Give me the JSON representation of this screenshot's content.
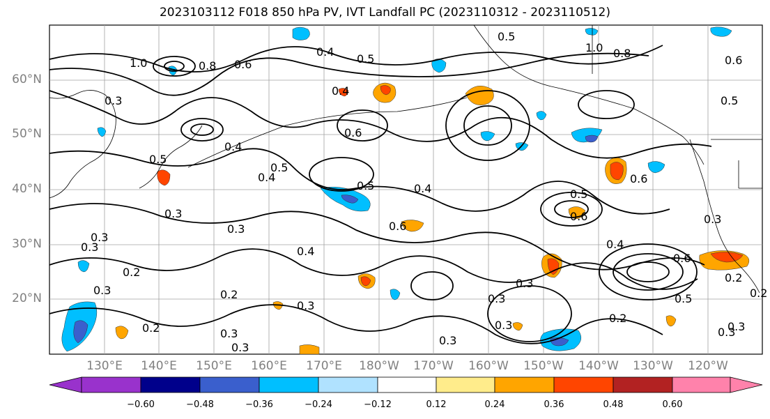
{
  "title": "2023103112 F018 850 hPa PV, IVT Landfall PC (2023110312 - 2023110512)",
  "lat_labels": [
    "60°N",
    "50°N",
    "40°N",
    "30°N",
    "20°N"
  ],
  "lon_labels": [
    "130°E",
    "140°E",
    "150°E",
    "160°E",
    "170°E",
    "180°W",
    "170°W",
    "160°W",
    "150°W",
    "140°W",
    "130°W",
    "120°W"
  ],
  "colorbar": {
    "colors": [
      "#9932CC",
      "#00008B",
      "#3A5FCD",
      "#00BFFF",
      "#B0E2FF",
      "#FFFFFF",
      "#FFEC8B",
      "#FFA500",
      "#FF4500",
      "#B22222",
      "#FF82AB"
    ],
    "ticks": [
      "−0.60",
      "−0.48",
      "−0.36",
      "−0.24",
      "−0.12",
      "0.12",
      "0.24",
      "0.36",
      "0.48",
      "0.60"
    ]
  },
  "contour_labels": [
    "1.0",
    "0.8",
    "0.6",
    "0.4",
    "0.3",
    "0.5",
    "0.4",
    "0.5",
    "0.4",
    "0.3",
    "0.3",
    "0.4",
    "0.2",
    "0.3",
    "0.2",
    "0.2",
    "0.3",
    "0.3",
    "0.3",
    "0.4",
    "0.6",
    "0.5",
    "0.6",
    "0.5",
    "0.6",
    "0.5",
    "0.6",
    "0.3",
    "0.3",
    "0.2",
    "0.3",
    "0.3",
    "0.2",
    "0.3",
    "0.4",
    "0.5",
    "0.6",
    "0.5",
    "1.0",
    "0.8",
    "0.6",
    "0.5",
    "0.4",
    "0.3",
    "0.2",
    "0.3",
    "0.3",
    "0.3"
  ]
}
